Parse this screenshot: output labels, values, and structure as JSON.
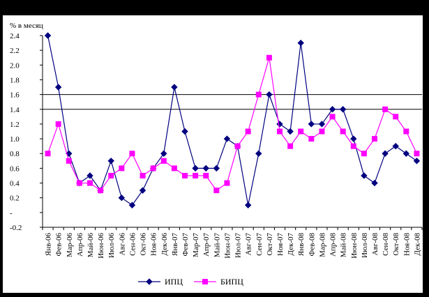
{
  "chart_data": {
    "type": "line",
    "ylabel": "% в месяц",
    "ylim": [
      -0.2,
      2.4
    ],
    "yticks": [
      "2.4",
      "2.2",
      "2.0",
      "1.8",
      "1.6",
      "1.4",
      "1.2",
      "1.0",
      "0.8",
      "0.6",
      "0.4",
      "0.2",
      "-",
      "-0.2"
    ],
    "ytick_values": [
      2.4,
      2.2,
      2.0,
      1.8,
      1.6,
      1.4,
      1.2,
      1.0,
      0.8,
      0.6,
      0.4,
      0.2,
      0.0,
      -0.2
    ],
    "reference_lines": [
      1.6,
      1.4
    ],
    "grid": false,
    "legend_position": "bottom",
    "categories": [
      "Янв-06",
      "Фев-06",
      "Мар-06",
      "Апр-06",
      "Май-06",
      "Июн-06",
      "Июл-06",
      "Авг-06",
      "Сен-06",
      "Окт-06",
      "Ноя-06",
      "Дек-06",
      "Янв-07",
      "Фев-07",
      "Мар-07",
      "Апр-07",
      "Май-07",
      "Июн-07",
      "Июл-07",
      "Авг-07",
      "Сен-07",
      "Окт-07",
      "Ноя-07",
      "Дек-07",
      "Янв-08",
      "Фев-08",
      "Мар-08",
      "Апр-08",
      "Май-08",
      "Июн-08",
      "Июл-08",
      "Авг-08",
      "Сен-08",
      "Окт-08",
      "Ноя-08",
      "Дек-08"
    ],
    "series": [
      {
        "name": "ИПЦ",
        "color": "#000080",
        "marker": "diamond",
        "values": [
          2.4,
          1.7,
          0.8,
          0.4,
          0.5,
          0.3,
          0.7,
          0.2,
          0.1,
          0.3,
          0.6,
          0.8,
          1.7,
          1.1,
          0.6,
          0.6,
          0.6,
          1.0,
          0.9,
          0.1,
          0.8,
          1.6,
          1.2,
          1.1,
          2.3,
          1.2,
          1.2,
          1.4,
          1.4,
          1.0,
          0.5,
          0.4,
          0.8,
          0.9,
          0.8,
          0.7
        ]
      },
      {
        "name": "БИПЦ",
        "color": "#ff00ff",
        "marker": "square",
        "values": [
          0.8,
          1.2,
          0.7,
          0.4,
          0.4,
          0.3,
          0.5,
          0.6,
          0.8,
          0.5,
          0.6,
          0.7,
          0.6,
          0.5,
          0.5,
          0.5,
          0.3,
          0.4,
          0.9,
          1.1,
          1.6,
          2.1,
          1.1,
          0.9,
          1.1,
          1.0,
          1.1,
          1.3,
          1.1,
          0.9,
          0.8,
          1.0,
          1.4,
          1.3,
          1.1,
          0.8
        ]
      }
    ]
  }
}
